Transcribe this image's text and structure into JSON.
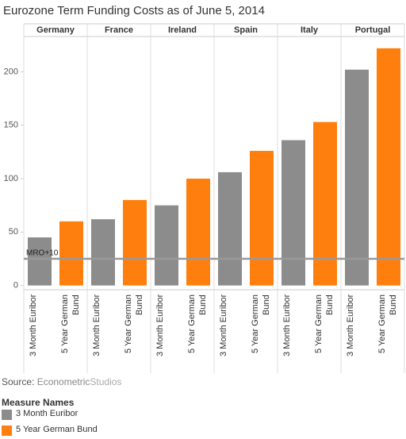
{
  "chart_data": {
    "type": "facet_bar",
    "title": "Eurozone Term Funding Costs as of June 5, 2014",
    "facets": [
      "Germany",
      "France",
      "Ireland",
      "Spain",
      "Italy",
      "Portugal"
    ],
    "series": [
      {
        "name": "3 Month Euribor",
        "color": "#8c8c8c",
        "values": [
          45,
          62,
          75,
          106,
          136,
          202
        ]
      },
      {
        "name": "5 Year German Bund",
        "color": "#ff7f0e",
        "values": [
          60,
          80,
          100,
          126,
          153,
          222
        ]
      }
    ],
    "ylim": [
      -4,
      233
    ],
    "yticks": [
      0,
      50,
      100,
      150,
      200
    ],
    "reference_line": {
      "label": "MRO+10",
      "value": 25
    },
    "source": {
      "label": "Source:",
      "name": "Econometric",
      "name_suffix": "Studios"
    },
    "legend_title": "Measure Names"
  }
}
